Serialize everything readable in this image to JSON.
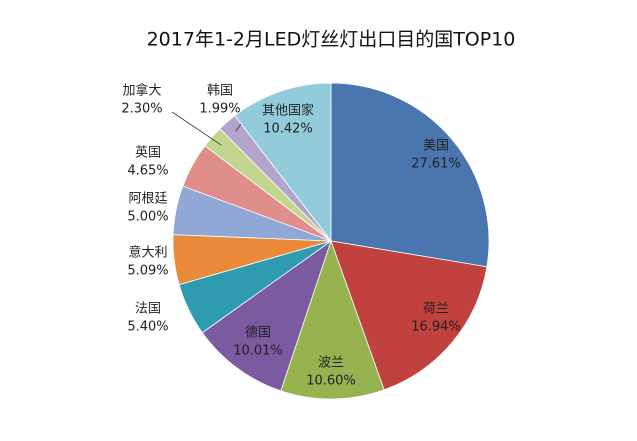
{
  "chart_data": {
    "type": "pie",
    "title": "2017年1-2月LED灯丝灯出口目的国TOP10",
    "categories": [
      "美国",
      "荷兰",
      "波兰",
      "德国",
      "法国",
      "意大利",
      "阿根廷",
      "英国",
      "加拿大",
      "韩国",
      "其他国家"
    ],
    "values": [
      27.61,
      16.94,
      10.6,
      10.01,
      5.4,
      5.09,
      5.0,
      4.65,
      2.3,
      1.99,
      10.42
    ],
    "value_labels": [
      "27.61%",
      "16.94%",
      "10.60%",
      "10.01%",
      "5.40%",
      "5.09%",
      "5.00%",
      "4.65%",
      "2.30%",
      "1.99%",
      "10.42%"
    ],
    "colors": [
      "#4a76b0",
      "#c0413d",
      "#97b34f",
      "#7b5aa0",
      "#2f9bb0",
      "#e98a3a",
      "#8fa8d6",
      "#e08e8b",
      "#c2d68f",
      "#b3a4c9",
      "#92ccdb"
    ]
  }
}
